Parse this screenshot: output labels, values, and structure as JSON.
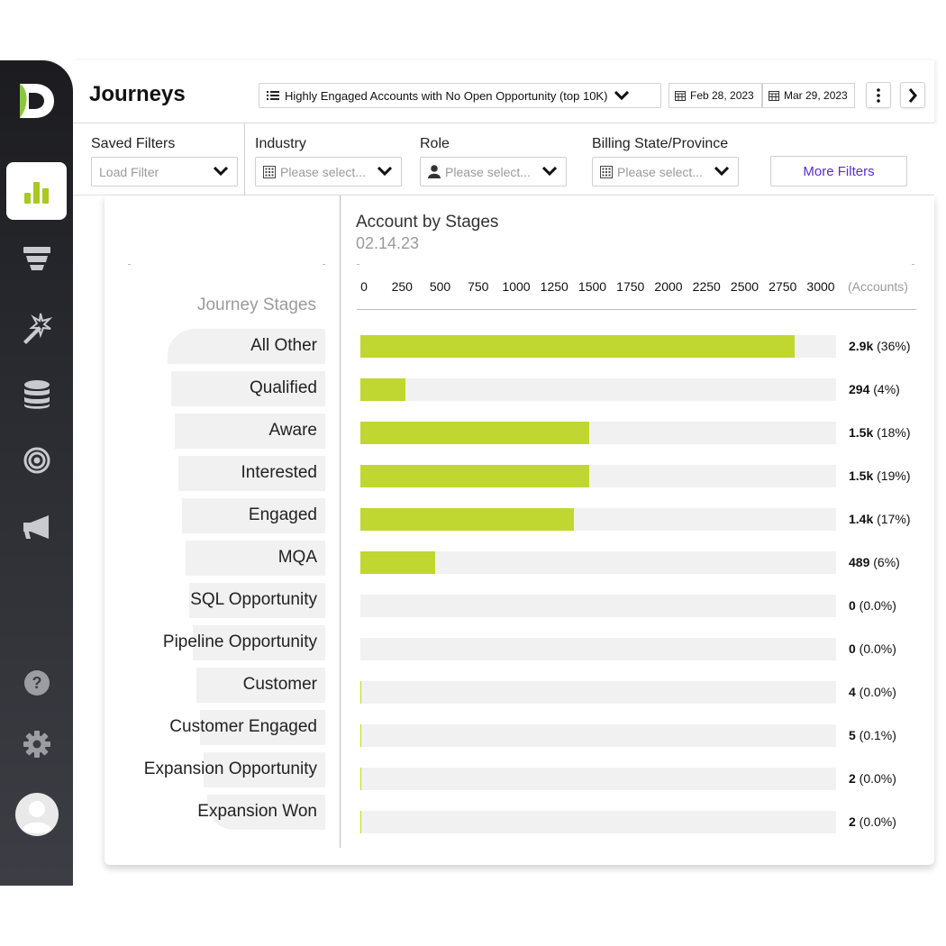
{
  "app": {
    "title": "Journeys"
  },
  "header": {
    "journey_select": "Highly Engaged Accounts with No Open Opportunity (top 10K)",
    "date_start": "Feb 28, 2023",
    "date_end": "Mar 29, 2023"
  },
  "filters": {
    "saved_filters_label": "Saved Filters",
    "saved_filters_placeholder": "Load Filter",
    "industry_label": "Industry",
    "industry_placeholder": "Please select...",
    "role_label": "Role",
    "role_placeholder": "Please select...",
    "billing_label": "Billing State/Province",
    "billing_placeholder": "Please select...",
    "more_filters": "More Filters"
  },
  "colors": {
    "accent_bar": "#bfd730",
    "track": "#f1f1f1",
    "more_filters_text": "#5a2bd6",
    "logo_leaf": "#8cc63f"
  },
  "sidebar": {
    "icons": [
      "bar-chart-icon",
      "funnel-icon",
      "magic-wand-icon",
      "database-icon",
      "target-icon",
      "megaphone-icon",
      "help-icon",
      "gear-icon",
      "user-avatar-icon"
    ],
    "active": "bar-chart-icon"
  },
  "chart_data": {
    "type": "bar",
    "orientation": "horizontal",
    "title": "Account by Stages",
    "subtitle": "02.14.23",
    "category_header": "Journey Stages",
    "xlabel": "(Accounts)",
    "xlim": [
      0,
      3000
    ],
    "x_ticks": [
      "0",
      "250",
      "500",
      "750",
      "1000",
      "1250",
      "1500",
      "1750",
      "2000",
      "2250",
      "2500",
      "2750",
      "3000"
    ],
    "categories": [
      "All Other",
      "Qualified",
      "Aware",
      "Interested",
      "Engaged",
      "MQA",
      "SQL Opportunity",
      "Pipeline Opportunity",
      "Customer",
      "Customer Engaged",
      "Expansion Opportunity",
      "Expansion Won"
    ],
    "values": [
      2850,
      294,
      1500,
      1500,
      1400,
      489,
      0,
      0,
      4,
      5,
      2,
      2
    ],
    "value_labels": [
      "2.9k",
      "294",
      "1.5k",
      "1.5k",
      "1.4k",
      "489",
      "0",
      "0",
      "4",
      "5",
      "2",
      "2"
    ],
    "percent_labels": [
      "(36%)",
      "(4%)",
      "(18%)",
      "(19%)",
      "(17%)",
      "(6%)",
      "(0.0%)",
      "(0.0%)",
      "(0.0%)",
      "(0.1%)",
      "(0.0%)",
      "(0.0%)"
    ],
    "grid": false
  }
}
